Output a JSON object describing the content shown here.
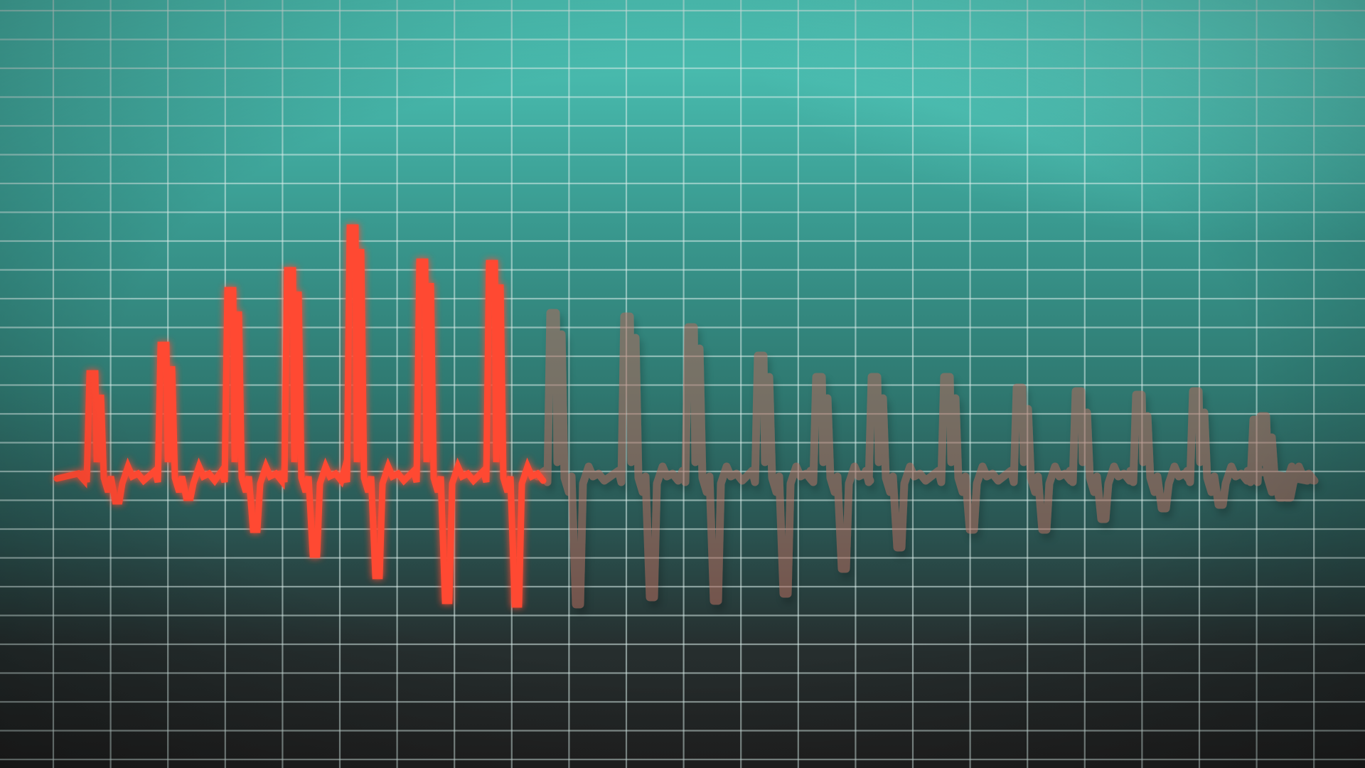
{
  "monitor": {
    "background_colors": {
      "top": "#4fc9bb",
      "middle": "#2f7a72",
      "bottom": "#222222"
    },
    "grid": {
      "visible": true,
      "color": "#d9ecea"
    },
    "waveform": {
      "type": "ecg-trace",
      "active_color": "#ff4a32",
      "faded_color": "#b26a5c",
      "peak_count": 20,
      "active_peak_count": 7
    }
  }
}
